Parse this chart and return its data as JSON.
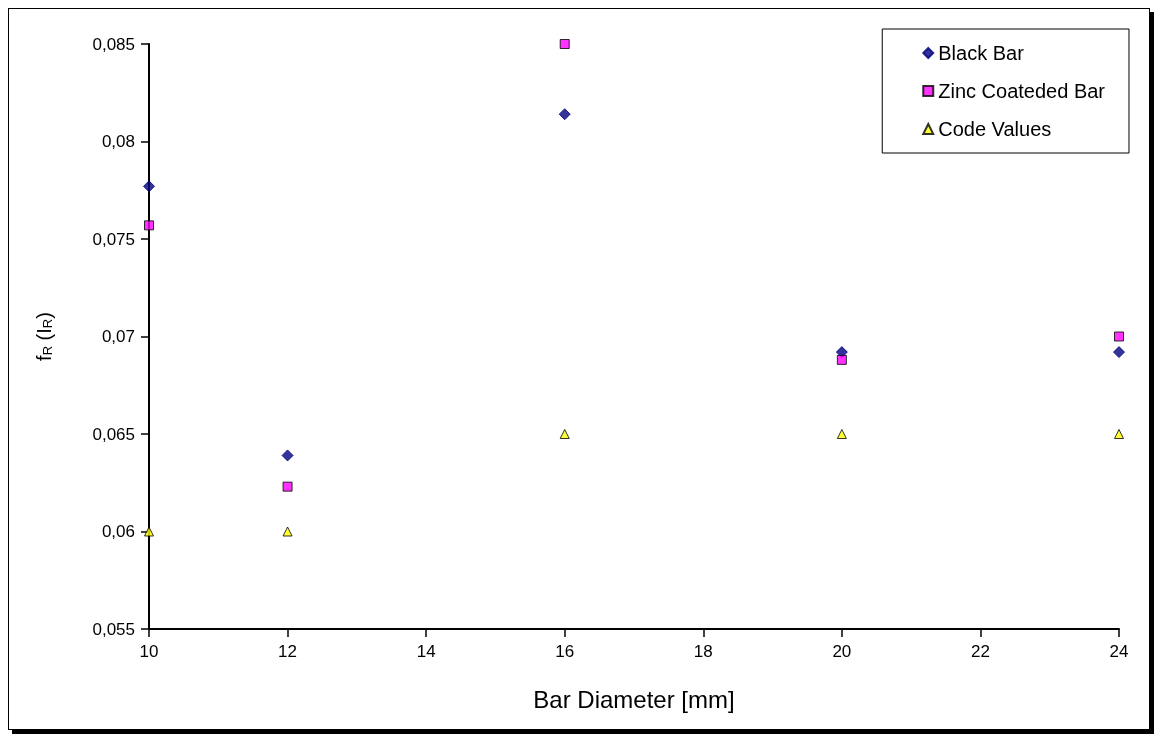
{
  "chart_data": {
    "type": "scatter",
    "xlabel": "Bar Diameter [mm]",
    "ylabel": "f$_{R}$ (I$_{R}$)",
    "x": [
      10,
      12,
      16,
      20,
      24
    ],
    "series": [
      {
        "name": "Black Bar",
        "color": "#000080",
        "marker": "diamond",
        "values": [
          0.0777,
          0.0639,
          0.0814,
          0.0692,
          0.0692
        ]
      },
      {
        "name": "Zinc Coateded Bar",
        "color": "#ff00ff",
        "marker": "square",
        "values": [
          0.0757,
          0.0623,
          0.085,
          0.0688,
          0.07
        ]
      },
      {
        "name": "Code Values",
        "color": "#ffff00",
        "marker": "triangle",
        "values": [
          0.06,
          0.06,
          0.065,
          0.065,
          0.065
        ]
      }
    ],
    "xlim": [
      10,
      24
    ],
    "xticks": [
      10,
      12,
      14,
      16,
      18,
      20,
      22,
      24
    ],
    "ylim": [
      0.055,
      0.085
    ],
    "yticks": [
      {
        "value": 0.055,
        "label": "0,055"
      },
      {
        "value": 0.06,
        "label": "0,06"
      },
      {
        "value": 0.065,
        "label": "0,065"
      },
      {
        "value": 0.07,
        "label": "0,07"
      },
      {
        "value": 0.075,
        "label": "0,075"
      },
      {
        "value": 0.08,
        "label": "0,08"
      },
      {
        "value": 0.085,
        "label": "0,085"
      }
    ],
    "grid": false,
    "legend": "top right"
  }
}
